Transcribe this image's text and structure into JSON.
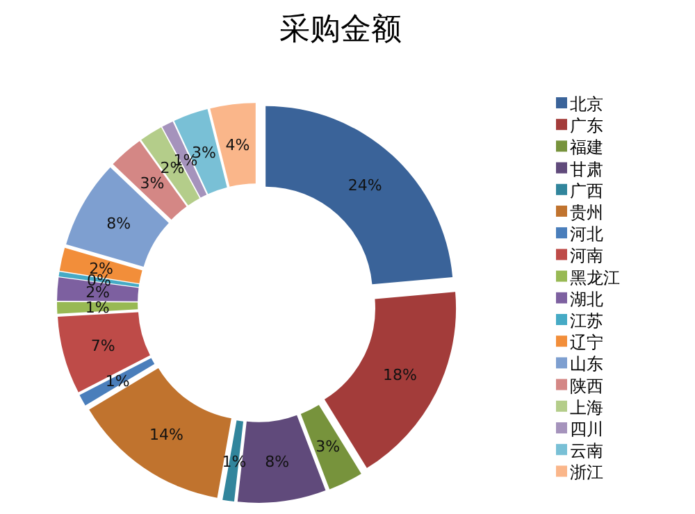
{
  "chart_data": {
    "type": "donut",
    "title": "采购金额",
    "categories": [
      "北京",
      "广东",
      "福建",
      "甘肃",
      "广西",
      "贵州",
      "河北",
      "河南",
      "黑龙江",
      "湖北",
      "江苏",
      "辽宁",
      "山东",
      "陕西",
      "上海",
      "四川",
      "云南",
      "浙江"
    ],
    "values": [
      23.6,
      17.6,
      3,
      7.6,
      1,
      13.6,
      1,
      6.7,
      1,
      2,
      0.4,
      2,
      7.6,
      3,
      2,
      1,
      3,
      3.9
    ],
    "value_labels": [
      "24%",
      "18%",
      "3%",
      "8%",
      "1%",
      "14%",
      "1%",
      "7%",
      "1%",
      "2%",
      "0%",
      "2%",
      "8%",
      "3%",
      "2%",
      "1%",
      "3%",
      "4%"
    ],
    "colors": [
      "#3a6399",
      "#a33c3a",
      "#77933c",
      "#604a7b",
      "#31859c",
      "#c0732e",
      "#4a7ebb",
      "#be4b48",
      "#98b954",
      "#7d60a0",
      "#46aac5",
      "#f28e3a",
      "#7e9fd0",
      "#d48785",
      "#b4cd8a",
      "#a593bc",
      "#79c0d6",
      "#fab68a"
    ],
    "legend": "right"
  }
}
